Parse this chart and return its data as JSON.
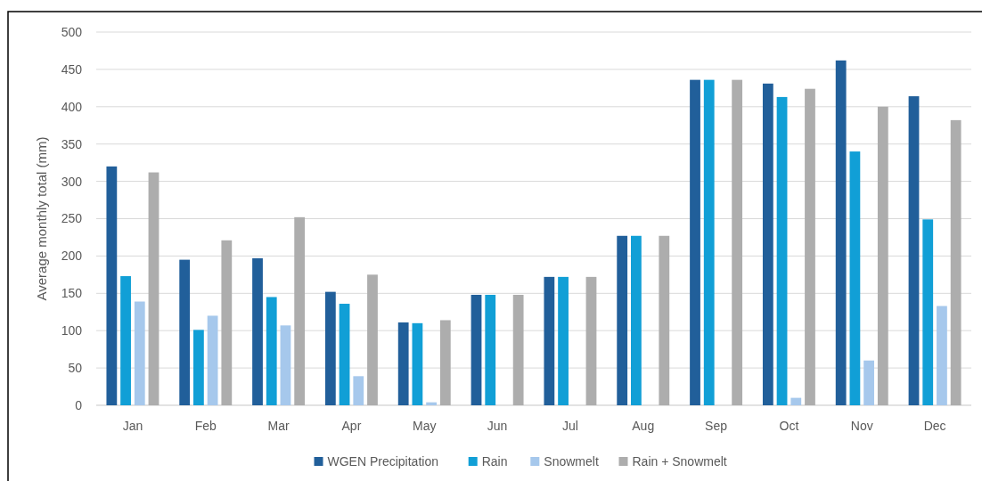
{
  "chart_data": {
    "type": "bar",
    "ylabel": "Average monthly total (mm)",
    "categories": [
      "Jan",
      "Feb",
      "Mar",
      "Apr",
      "May",
      "Jun",
      "Jul",
      "Aug",
      "Sep",
      "Oct",
      "Nov",
      "Dec"
    ],
    "series": [
      {
        "name": "WGEN Precipitation",
        "color": "#215f9a",
        "values": [
          320,
          195,
          197,
          152,
          111,
          148,
          172,
          227,
          436,
          431,
          462,
          414
        ]
      },
      {
        "name": "Rain",
        "color": "#119fd6",
        "values": [
          173,
          101,
          145,
          136,
          110,
          148,
          172,
          227,
          436,
          413,
          340,
          249
        ]
      },
      {
        "name": "Snowmelt",
        "color": "#a6c8ec",
        "values": [
          139,
          120,
          107,
          39,
          4,
          0,
          0,
          0,
          0,
          10,
          60,
          133
        ]
      },
      {
        "name": "Rain + Snowmelt",
        "color": "#adadad",
        "values": [
          312,
          221,
          252,
          175,
          114,
          148,
          172,
          227,
          436,
          424,
          400,
          382
        ]
      }
    ],
    "ylim": [
      0,
      500
    ],
    "yticks": [
      0,
      50,
      100,
      150,
      200,
      250,
      300,
      350,
      400,
      450,
      500
    ],
    "grid": "y",
    "legend": "bottom"
  }
}
